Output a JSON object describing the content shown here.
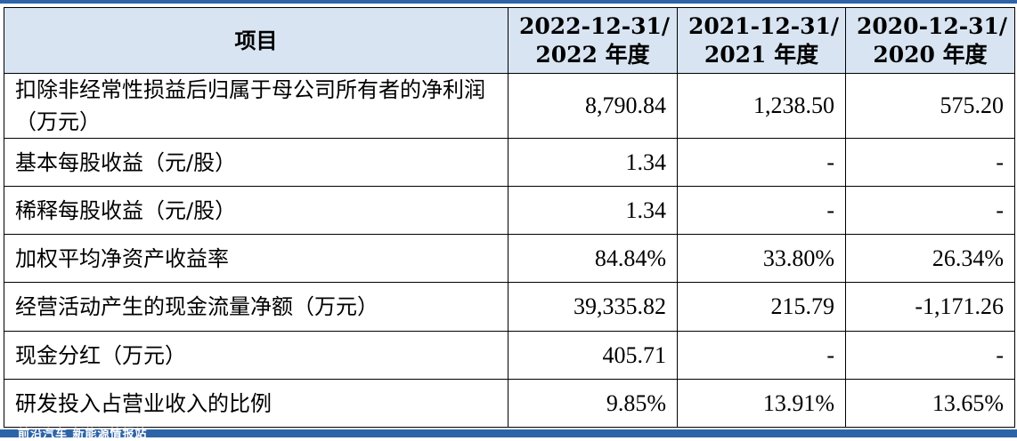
{
  "table": {
    "headers": [
      {
        "line1": "项目",
        "line2": ""
      },
      {
        "line1": "2022-12-31/",
        "line2": "2022 年度"
      },
      {
        "line1": "2021-12-31/",
        "line2": "2021 年度"
      },
      {
        "line1": "2020-12-31/",
        "line2": "2020 年度"
      }
    ],
    "rows": [
      {
        "label": "扣除非经常性损益后归属于母公司所有者的净利润（万元）",
        "v2022": "8,790.84",
        "v2021": "1,238.50",
        "v2020": "575.20"
      },
      {
        "label": "基本每股收益（元/股）",
        "v2022": "1.34",
        "v2021": "-",
        "v2020": "-"
      },
      {
        "label": "稀释每股收益（元/股）",
        "v2022": "1.34",
        "v2021": "-",
        "v2020": "-"
      },
      {
        "label": "加权平均净资产收益率",
        "v2022": "84.84%",
        "v2021": "33.80%",
        "v2020": "26.34%"
      },
      {
        "label": "经营活动产生的现金流量净额（万元）",
        "v2022": "39,335.82",
        "v2021": "215.79",
        "v2020": "-1,171.26"
      },
      {
        "label": "现金分红（万元）",
        "v2022": "405.71",
        "v2021": "-",
        "v2020": "-"
      },
      {
        "label": "研发投入占营业收入的比例",
        "v2022": "9.85%",
        "v2021": "13.91%",
        "v2020": "13.65%"
      }
    ]
  },
  "footer": {
    "watermark": "前沿汽车 新能源情报站"
  },
  "colors": {
    "header_bg": "#d8e4f2",
    "rule": "#2d64a8"
  }
}
